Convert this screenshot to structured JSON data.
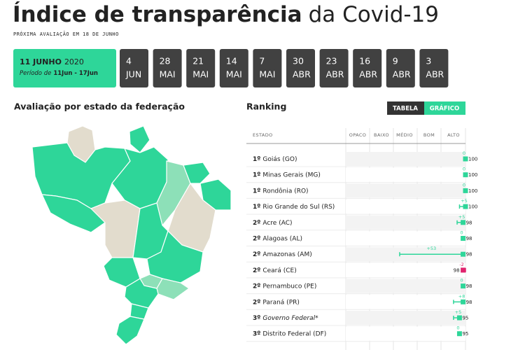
{
  "header": {
    "title_bold": "Índice de transparência",
    "title_rest": "da Covid-19",
    "subtitle": "PRÓXIMA AVALIAÇÃO EM 18 DE JUNHO"
  },
  "tabs": {
    "active": {
      "date": "11 JUNHO",
      "year": "2020",
      "period_prefix": "Período de",
      "period": "11Jun - 17Jun"
    },
    "others": [
      {
        "day": "4",
        "month": "JUN"
      },
      {
        "day": "28",
        "month": "MAI"
      },
      {
        "day": "21",
        "month": "MAI"
      },
      {
        "day": "14",
        "month": "MAI"
      },
      {
        "day": "7",
        "month": "MAI"
      },
      {
        "day": "30",
        "month": "ABR"
      },
      {
        "day": "23",
        "month": "ABR"
      },
      {
        "day": "16",
        "month": "ABR"
      },
      {
        "day": "9",
        "month": "ABR"
      },
      {
        "day": "3",
        "month": "ABR"
      }
    ]
  },
  "map": {
    "title": "Avaliação por estado da federação"
  },
  "ranking": {
    "title": "Ranking",
    "toggle": [
      "TABELA",
      "GRÁFICO"
    ],
    "columns": [
      "ESTADO",
      "OPACO",
      "BAIXO",
      "MÉDIO",
      "BOM",
      "ALTO"
    ],
    "rows": [
      {
        "rank": "1º",
        "name": "Goiás (GO)",
        "score": 100,
        "change": 0
      },
      {
        "rank": "1º",
        "name": "Minas Gerais (MG)",
        "score": 100,
        "change": 0
      },
      {
        "rank": "1º",
        "name": "Rondônia (RO)",
        "score": 100,
        "change": 0
      },
      {
        "rank": "1º",
        "name": "Rio Grande do Sul (RS)",
        "score": 100,
        "change": {
          "value": 5,
          "label": "+5"
        }
      },
      {
        "rank": "2º",
        "name": "Acre (AC)",
        "score": 98,
        "change": {
          "value": 5,
          "label": "+5"
        }
      },
      {
        "rank": "2º",
        "name": "Alagoas (AL)",
        "score": 98,
        "change": 0
      },
      {
        "rank": "2º",
        "name": "Amazonas (AM)",
        "score": 98,
        "change": {
          "value": 53,
          "label": "+53"
        }
      },
      {
        "rank": "2º",
        "name": "Ceará (CE)",
        "score": 98,
        "change": -2
      },
      {
        "rank": "2º",
        "name": "Pernambuco (PE)",
        "score": 98,
        "change": 0
      },
      {
        "rank": "2º",
        "name": "Paraná (PR)",
        "score": 98,
        "change": {
          "value": 8,
          "label": "+8"
        }
      },
      {
        "rank": "3º",
        "name": "Governo Federal*",
        "score": 95,
        "change": {
          "value": 5,
          "label": "+5"
        },
        "italic": true
      },
      {
        "rank": "3º",
        "name": "Distrito Federal (DF)",
        "score": 95,
        "change": 0
      }
    ]
  }
}
